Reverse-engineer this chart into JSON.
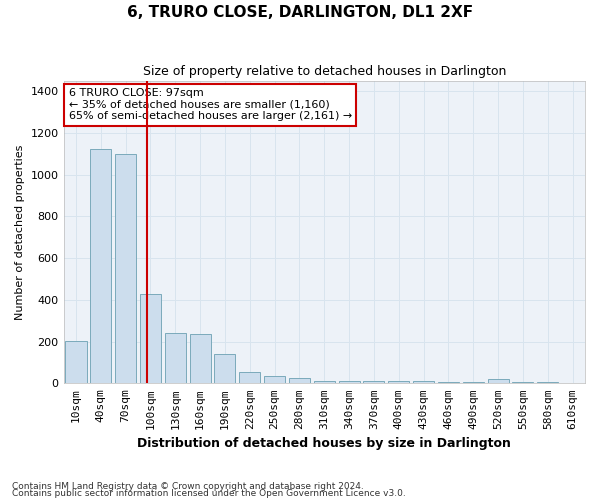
{
  "title": "6, TRURO CLOSE, DARLINGTON, DL1 2XF",
  "subtitle": "Size of property relative to detached houses in Darlington",
  "xlabel": "Distribution of detached houses by size in Darlington",
  "ylabel": "Number of detached properties",
  "footnote1": "Contains HM Land Registry data © Crown copyright and database right 2024.",
  "footnote2": "Contains public sector information licensed under the Open Government Licence v3.0.",
  "bar_color": "#ccdded",
  "bar_edge_color": "#7aaabb",
  "grid_color": "#d8e4ee",
  "background_color": "#edf2f8",
  "property_line_color": "#cc0000",
  "annotation_box_color": "#cc0000",
  "categories": [
    "10sqm",
    "40sqm",
    "70sqm",
    "100sqm",
    "130sqm",
    "160sqm",
    "190sqm",
    "220sqm",
    "250sqm",
    "280sqm",
    "310sqm",
    "340sqm",
    "370sqm",
    "400sqm",
    "430sqm",
    "460sqm",
    "490sqm",
    "520sqm",
    "550sqm",
    "580sqm",
    "610sqm"
  ],
  "values": [
    205,
    1120,
    1100,
    430,
    240,
    235,
    140,
    55,
    35,
    25,
    10,
    10,
    10,
    10,
    10,
    5,
    5,
    20,
    5,
    5,
    0
  ],
  "ylim": [
    0,
    1450
  ],
  "property_line_x": 2.85,
  "annotation_text": "6 TRURO CLOSE: 97sqm\n← 35% of detached houses are smaller (1,160)\n65% of semi-detached houses are larger (2,161) →"
}
